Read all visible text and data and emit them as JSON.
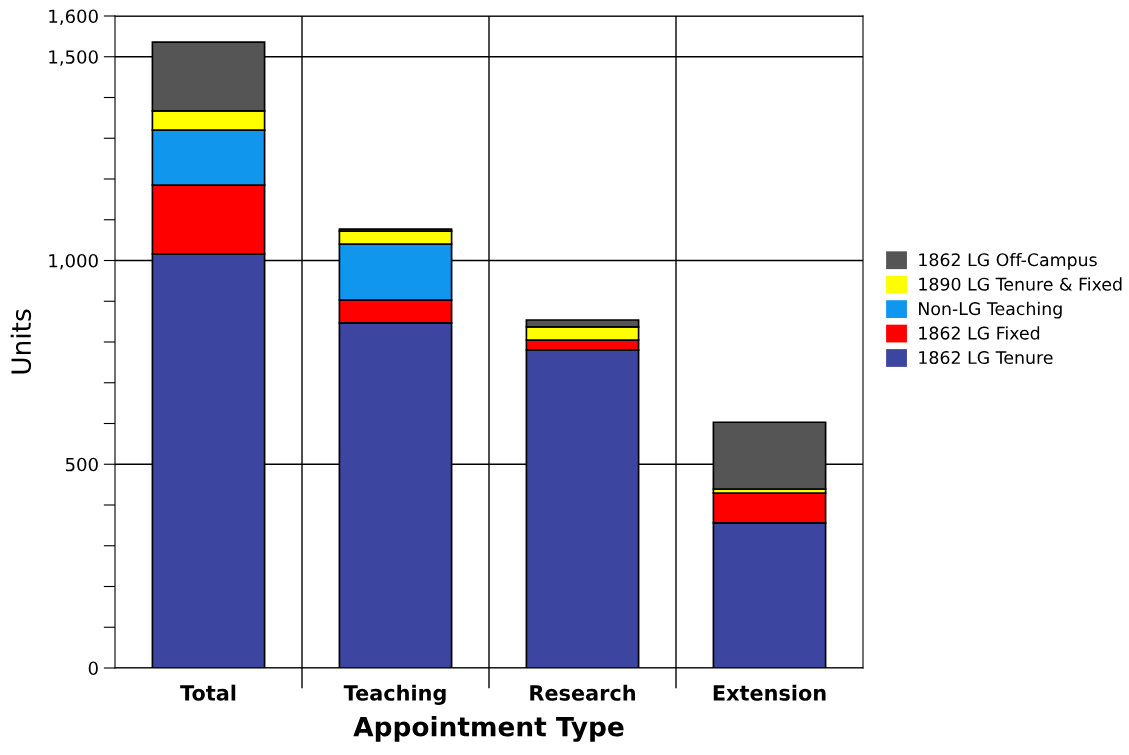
{
  "chart_data": {
    "type": "bar",
    "stacked": true,
    "xlabel": "Appointment Type",
    "ylabel": "Units",
    "categories": [
      "Total",
      "Teaching",
      "Research",
      "Extension"
    ],
    "series": [
      {
        "name": "1862 LG Tenure",
        "color": "#3c46a0",
        "values": [
          1016,
          847,
          780,
          356
        ]
      },
      {
        "name": "1862 LG Fixed",
        "color": "#ff0000",
        "values": [
          169,
          56,
          25,
          73
        ]
      },
      {
        "name": "Non-LG Teaching",
        "color": "#1196ee",
        "values": [
          135,
          137,
          0,
          0
        ]
      },
      {
        "name": "1890 LG Tenure & Fixed",
        "color": "#ffff00",
        "values": [
          47,
          32,
          32,
          10
        ]
      },
      {
        "name": "1862 LG Off-Campus",
        "color": "#555555",
        "values": [
          169,
          5,
          17,
          164
        ]
      }
    ],
    "ylim": [
      0,
      1600
    ],
    "yticks": [
      0,
      {
        "value": 100,
        "label": null
      },
      {
        "value": 200,
        "label": null
      },
      {
        "value": 300,
        "label": null
      },
      {
        "value": 400,
        "label": null
      },
      {
        "value": 500,
        "label": "500"
      },
      {
        "value": 600,
        "label": null
      },
      {
        "value": 700,
        "label": null
      },
      {
        "value": 800,
        "label": null
      },
      {
        "value": 900,
        "label": null
      },
      {
        "value": 1000,
        "label": "1,000"
      },
      {
        "value": 1100,
        "label": null
      },
      {
        "value": 1200,
        "label": null
      },
      {
        "value": 1300,
        "label": null
      },
      {
        "value": 1400,
        "label": null
      },
      {
        "value": 1500,
        "label": "1,500"
      },
      {
        "value": 1600,
        "label": "1,600"
      }
    ],
    "grid": "y",
    "legend": "right"
  }
}
